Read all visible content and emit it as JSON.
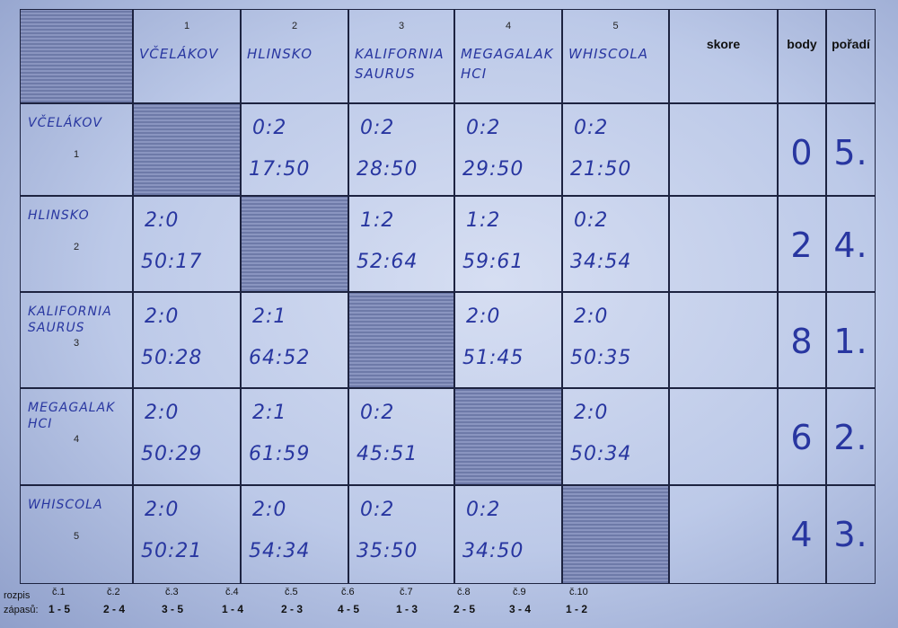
{
  "columns": {
    "teams": [
      {
        "number": "1",
        "name": "VČELÁKOV"
      },
      {
        "number": "2",
        "name": "HLINSKO"
      },
      {
        "number": "3",
        "name": "KALIFORNIA SAURUS"
      },
      {
        "number": "4",
        "name": "MEGAGALAK HCI"
      },
      {
        "number": "5",
        "name": "WHISCOLA"
      }
    ],
    "skore": "skore",
    "body": "body",
    "poradi": "pořadí"
  },
  "rows": [
    {
      "number": "1",
      "name": "VČELÁKOV",
      "cells": [
        null,
        {
          "sets": "0:2",
          "points": "17:50"
        },
        {
          "sets": "0:2",
          "points": "28:50"
        },
        {
          "sets": "0:2",
          "points": "29:50"
        },
        {
          "sets": "0:2",
          "points": "21:50"
        }
      ],
      "skore": "",
      "body": "0",
      "poradi": "5."
    },
    {
      "number": "2",
      "name": "HLINSKO",
      "cells": [
        {
          "sets": "2:0",
          "points": "50:17"
        },
        null,
        {
          "sets": "1:2",
          "points": "52:64"
        },
        {
          "sets": "1:2",
          "points": "59:61"
        },
        {
          "sets": "0:2",
          "points": "34:54"
        }
      ],
      "skore": "",
      "body": "2",
      "poradi": "4."
    },
    {
      "number": "3",
      "name": "KALIFORNIA SAURUS",
      "cells": [
        {
          "sets": "2:0",
          "points": "50:28"
        },
        {
          "sets": "2:1",
          "points": "64:52"
        },
        null,
        {
          "sets": "2:0",
          "points": "51:45"
        },
        {
          "sets": "2:0",
          "points": "50:35"
        }
      ],
      "skore": "",
      "body": "8",
      "poradi": "1."
    },
    {
      "number": "4",
      "name": "MEGAGALAK HCI",
      "cells": [
        {
          "sets": "2:0",
          "points": "50:29"
        },
        {
          "sets": "2:1",
          "points": "61:59"
        },
        {
          "sets": "0:2",
          "points": "45:51"
        },
        null,
        {
          "sets": "2:0",
          "points": "50:34"
        }
      ],
      "skore": "",
      "body": "6",
      "poradi": "2."
    },
    {
      "number": "5",
      "name": "WHISCOLA",
      "cells": [
        {
          "sets": "2:0",
          "points": "50:21"
        },
        {
          "sets": "2:0",
          "points": "54:34"
        },
        {
          "sets": "0:2",
          "points": "35:50"
        },
        {
          "sets": "0:2",
          "points": "34:50"
        },
        null
      ],
      "skore": "",
      "body": "4",
      "poradi": "3."
    }
  ],
  "schedule": {
    "label_line1": "rozpis",
    "label_line2": "zápasů:",
    "matches": [
      {
        "no": "č.1",
        "pair": "1 - 5"
      },
      {
        "no": "č.2",
        "pair": "2 - 4"
      },
      {
        "no": "č.3",
        "pair": "3 - 5"
      },
      {
        "no": "č.4",
        "pair": "1 - 4"
      },
      {
        "no": "č.5",
        "pair": "2 - 3"
      },
      {
        "no": "č.6",
        "pair": "4 - 5"
      },
      {
        "no": "č.7",
        "pair": "1 - 3"
      },
      {
        "no": "č.8",
        "pair": "2 - 5"
      },
      {
        "no": "č.9",
        "pair": "3 - 4"
      },
      {
        "no": "č.10",
        "pair": "1 - 2"
      }
    ]
  },
  "colors": {
    "ink": "#2836a0",
    "paper": "#c9d3ee",
    "shade": "#7a86b4"
  }
}
